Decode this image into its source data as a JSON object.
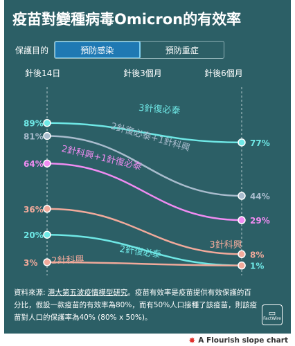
{
  "header": {
    "title": "疫苗對變種病毒Omicron的有效率",
    "filter_label": "保護目的",
    "tabs": [
      {
        "label": "預防感染",
        "active": true
      },
      {
        "label": "預防重症",
        "active": false
      }
    ]
  },
  "chart_data": {
    "type": "line",
    "chart_style": "slope",
    "x": [
      "針後14日",
      "針後3個月",
      "針後6個月"
    ],
    "series": [
      {
        "name": "3針復必泰",
        "color": "#6fe8e6",
        "values": [
          89,
          null,
          77
        ],
        "start_label": "89%",
        "end_label": "77%"
      },
      {
        "name": "2針復必泰+1針科興",
        "color": "#a9bccd",
        "values": [
          81,
          null,
          44
        ],
        "start_label": "81%",
        "end_label": "44%"
      },
      {
        "name": "2針科興+1針復必泰",
        "color": "#f08cf2",
        "values": [
          64,
          null,
          29
        ],
        "start_label": "64%",
        "end_label": "29%"
      },
      {
        "name": "3針科興",
        "color": "#f2aa9b",
        "values": [
          36,
          null,
          8
        ],
        "start_label": "36%",
        "end_label": "8%"
      },
      {
        "name": "2針復必泰",
        "color": "#6fe8e6",
        "values": [
          20,
          null,
          1
        ],
        "start_label": "20%",
        "end_label": "1%"
      },
      {
        "name": "2針科興",
        "color": "#f2aa9b",
        "values": [
          3,
          null,
          1
        ],
        "start_label": "3%",
        "end_label": ""
      }
    ],
    "ylim": [
      0,
      100
    ],
    "grid": true
  },
  "footer": {
    "prefix": "資料來源: ",
    "source_link": "港大第五波疫情模型研究",
    "note": "。疫苗有效率是疫苗提供有效保護的百分比，假設一款疫苗的有效率為80%，而有50%人口接種了該疫苗，則該疫苗對人口的保護率為40% (80% x 50%)。",
    "logo_text": "FactWire"
  },
  "credit": "A Flourish slope chart",
  "colors": {
    "background": "#2c5f66",
    "accent_tab": "#1f79b3"
  }
}
